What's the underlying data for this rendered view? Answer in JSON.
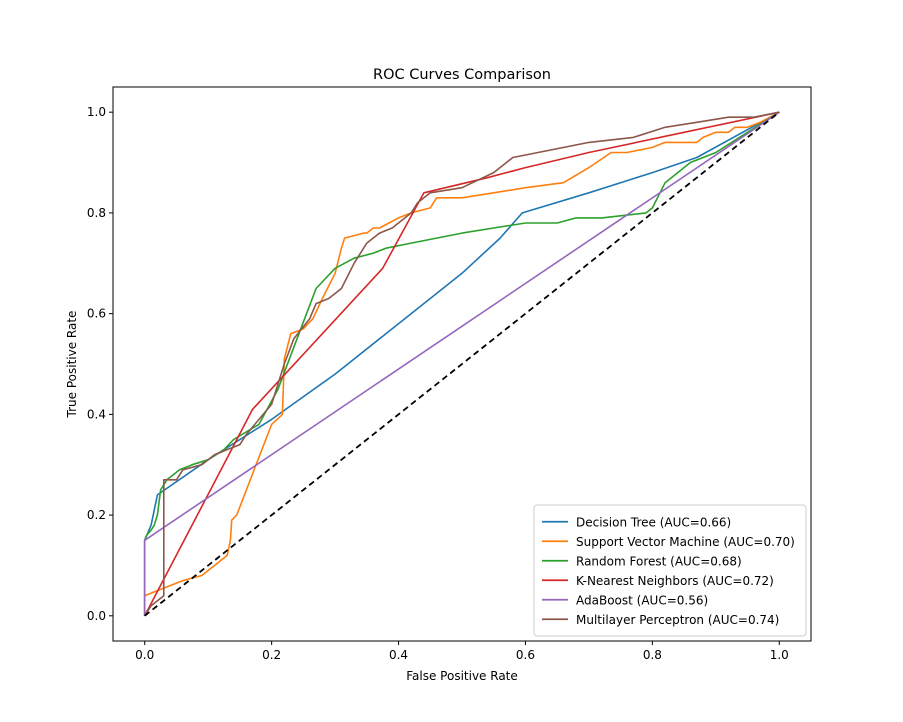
{
  "chart_data": {
    "type": "line",
    "title": "ROC Curves Comparison",
    "xlabel": "False Positive Rate",
    "ylabel": "True Positive Rate",
    "xlim": [
      -0.05,
      1.05
    ],
    "ylim": [
      -0.05,
      1.05
    ],
    "xticks": [
      "0.0",
      "0.2",
      "0.4",
      "0.6",
      "0.8",
      "1.0"
    ],
    "yticks": [
      "0.0",
      "0.2",
      "0.4",
      "0.6",
      "0.8",
      "1.0"
    ],
    "grid": false,
    "legend_position": "lower-right",
    "baseline": {
      "x": [
        0,
        1
      ],
      "y": [
        0,
        1
      ],
      "color": "#000000",
      "style": "dashed"
    },
    "series": [
      {
        "name": "Decision Tree (AUC=0.66)",
        "color": "#1f77b4",
        "x": [
          0,
          0,
          0.01,
          0.02,
          0.1,
          0.2,
          0.3,
          0.4,
          0.5,
          0.56,
          0.595,
          0.7,
          0.8,
          0.87,
          1.0
        ],
        "y": [
          0,
          0.15,
          0.18,
          0.24,
          0.31,
          0.39,
          0.48,
          0.58,
          0.68,
          0.75,
          0.8,
          0.84,
          0.88,
          0.91,
          1.0
        ]
      },
      {
        "name": "Support Vector Machine (AUC=0.70)",
        "color": "#ff7f0e",
        "x": [
          0,
          0,
          0.02,
          0.06,
          0.09,
          0.11,
          0.13,
          0.135,
          0.137,
          0.145,
          0.2,
          0.217,
          0.22,
          0.23,
          0.25,
          0.265,
          0.28,
          0.3,
          0.31,
          0.315,
          0.345,
          0.35,
          0.36,
          0.37,
          0.385,
          0.4,
          0.42,
          0.45,
          0.46,
          0.5,
          0.55,
          0.6,
          0.66,
          0.7,
          0.735,
          0.76,
          0.8,
          0.82,
          0.84,
          0.87,
          0.88,
          0.9,
          0.92,
          0.93,
          0.95,
          0.97,
          1.0
        ],
        "y": [
          0,
          0.04,
          0.05,
          0.07,
          0.08,
          0.1,
          0.12,
          0.15,
          0.19,
          0.2,
          0.38,
          0.4,
          0.51,
          0.56,
          0.57,
          0.59,
          0.63,
          0.68,
          0.73,
          0.75,
          0.76,
          0.76,
          0.77,
          0.77,
          0.78,
          0.79,
          0.8,
          0.81,
          0.83,
          0.83,
          0.84,
          0.85,
          0.86,
          0.89,
          0.92,
          0.92,
          0.93,
          0.94,
          0.94,
          0.94,
          0.95,
          0.96,
          0.96,
          0.97,
          0.97,
          0.98,
          1.0
        ]
      },
      {
        "name": "Random Forest (AUC=0.68)",
        "color": "#2ca02c",
        "x": [
          0,
          0,
          0.003,
          0.01,
          0.015,
          0.02,
          0.025,
          0.035,
          0.045,
          0.055,
          0.075,
          0.1,
          0.125,
          0.14,
          0.18,
          0.21,
          0.24,
          0.27,
          0.3,
          0.33,
          0.36,
          0.38,
          0.42,
          0.5,
          0.55,
          0.6,
          0.65,
          0.68,
          0.72,
          0.79,
          0.8,
          0.82,
          0.86,
          0.9,
          0.95,
          1.0
        ],
        "y": [
          0,
          0.15,
          0.16,
          0.17,
          0.18,
          0.2,
          0.25,
          0.27,
          0.28,
          0.29,
          0.3,
          0.31,
          0.33,
          0.35,
          0.38,
          0.45,
          0.55,
          0.65,
          0.69,
          0.71,
          0.72,
          0.73,
          0.74,
          0.76,
          0.77,
          0.78,
          0.78,
          0.79,
          0.79,
          0.8,
          0.81,
          0.86,
          0.9,
          0.92,
          0.96,
          1.0
        ]
      },
      {
        "name": "K-Nearest Neighbors (AUC=0.72)",
        "color": "#d62728",
        "x": [
          0,
          0.17,
          0.375,
          0.44,
          0.54,
          0.6,
          0.7,
          0.85,
          1.0
        ],
        "y": [
          0,
          0.41,
          0.69,
          0.84,
          0.87,
          0.89,
          0.92,
          0.96,
          1.0
        ]
      },
      {
        "name": "AdaBoost (AUC=0.56)",
        "color": "#9467bd",
        "x": [
          0,
          0,
          1.0
        ],
        "y": [
          0,
          0.15,
          1.0
        ]
      },
      {
        "name": "Multilayer Perceptron (AUC=0.74)",
        "color": "#8c564b",
        "x": [
          0,
          0.01,
          0.03,
          0.03,
          0.05,
          0.06,
          0.09,
          0.11,
          0.13,
          0.15,
          0.16,
          0.2,
          0.22,
          0.235,
          0.26,
          0.27,
          0.29,
          0.3,
          0.31,
          0.33,
          0.35,
          0.37,
          0.39,
          0.41,
          0.42,
          0.43,
          0.45,
          0.5,
          0.55,
          0.58,
          0.62,
          0.7,
          0.77,
          0.82,
          0.87,
          0.92,
          0.96,
          1.0
        ],
        "y": [
          0,
          0.02,
          0.04,
          0.27,
          0.27,
          0.29,
          0.3,
          0.32,
          0.33,
          0.34,
          0.36,
          0.42,
          0.5,
          0.55,
          0.59,
          0.62,
          0.63,
          0.64,
          0.65,
          0.7,
          0.74,
          0.76,
          0.77,
          0.79,
          0.8,
          0.82,
          0.84,
          0.85,
          0.88,
          0.91,
          0.92,
          0.94,
          0.95,
          0.97,
          0.98,
          0.99,
          0.99,
          1.0
        ]
      }
    ]
  }
}
